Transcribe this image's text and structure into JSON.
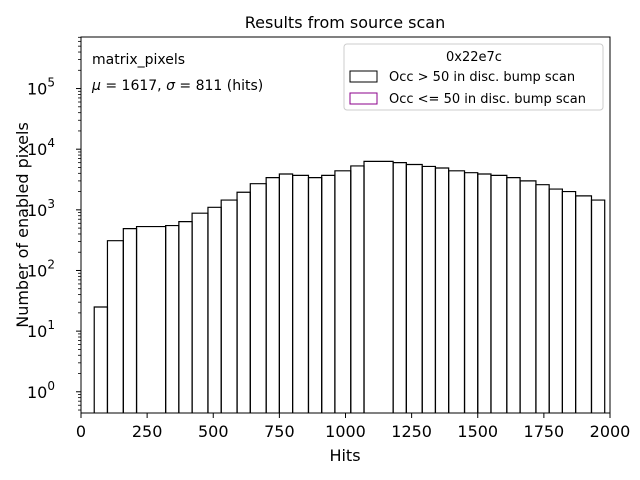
{
  "chart_data": {
    "type": "bar",
    "subtype": "step-histogram",
    "title": "Results from source scan",
    "xlabel": "Hits",
    "ylabel": "Number of enabled pixels",
    "xlim": [
      0,
      2000
    ],
    "ylim_log10": [
      -0.35,
      5.85
    ],
    "yscale": "log",
    "grid": false,
    "x_ticks": [
      "0",
      "250",
      "500",
      "750",
      "1000",
      "1250",
      "1500",
      "1750",
      "2000"
    ],
    "y_ticks": [
      {
        "base": "10",
        "exp": "0",
        "value": 1
      },
      {
        "base": "10",
        "exp": "1",
        "value": 10
      },
      {
        "base": "10",
        "exp": "2",
        "value": 100
      },
      {
        "base": "10",
        "exp": "3",
        "value": 1000
      },
      {
        "base": "10",
        "exp": "4",
        "value": 10000
      },
      {
        "base": "10",
        "exp": "5",
        "value": 100000
      }
    ],
    "annotations": {
      "name": "matrix_pixels",
      "stats_mu_sym": "μ",
      "stats_mu_val": " = 1617, ",
      "stats_sigma_sym": "σ",
      "stats_sigma_val": " = 811 (hits)"
    },
    "legend": {
      "title": "0x22e7c",
      "placement": "top-right",
      "entries": [
        {
          "label": "Occ > 50 in disc. bump scan",
          "color": "#000000"
        },
        {
          "label": "Occ <= 50 in disc. bump scan",
          "color": "#8b008b"
        }
      ]
    },
    "series": [
      {
        "name": "Occ > 50 in disc. bump scan",
        "color": "#000000",
        "bins": [
          {
            "x0": 50,
            "x1": 100,
            "y": 25
          },
          {
            "x0": 100,
            "x1": 160,
            "y": 310
          },
          {
            "x0": 160,
            "x1": 210,
            "y": 490
          },
          {
            "x0": 210,
            "x1": 320,
            "y": 530
          },
          {
            "x0": 320,
            "x1": 370,
            "y": 550
          },
          {
            "x0": 370,
            "x1": 420,
            "y": 640
          },
          {
            "x0": 420,
            "x1": 480,
            "y": 880
          },
          {
            "x0": 480,
            "x1": 530,
            "y": 1100
          },
          {
            "x0": 530,
            "x1": 590,
            "y": 1450
          },
          {
            "x0": 590,
            "x1": 640,
            "y": 1950
          },
          {
            "x0": 640,
            "x1": 700,
            "y": 2700
          },
          {
            "x0": 700,
            "x1": 750,
            "y": 3400
          },
          {
            "x0": 750,
            "x1": 800,
            "y": 3900
          },
          {
            "x0": 800,
            "x1": 860,
            "y": 3700
          },
          {
            "x0": 860,
            "x1": 910,
            "y": 3400
          },
          {
            "x0": 910,
            "x1": 960,
            "y": 3700
          },
          {
            "x0": 960,
            "x1": 1020,
            "y": 4400
          },
          {
            "x0": 1020,
            "x1": 1070,
            "y": 5300
          },
          {
            "x0": 1070,
            "x1": 1180,
            "y": 6300
          },
          {
            "x0": 1180,
            "x1": 1230,
            "y": 6000
          },
          {
            "x0": 1230,
            "x1": 1290,
            "y": 5600
          },
          {
            "x0": 1290,
            "x1": 1340,
            "y": 5200
          },
          {
            "x0": 1340,
            "x1": 1390,
            "y": 4900
          },
          {
            "x0": 1390,
            "x1": 1450,
            "y": 4400
          },
          {
            "x0": 1450,
            "x1": 1500,
            "y": 4100
          },
          {
            "x0": 1500,
            "x1": 1550,
            "y": 3900
          },
          {
            "x0": 1550,
            "x1": 1610,
            "y": 3700
          },
          {
            "x0": 1610,
            "x1": 1660,
            "y": 3400
          },
          {
            "x0": 1660,
            "x1": 1720,
            "y": 3000
          },
          {
            "x0": 1720,
            "x1": 1770,
            "y": 2600
          },
          {
            "x0": 1770,
            "x1": 1820,
            "y": 2200
          },
          {
            "x0": 1820,
            "x1": 1870,
            "y": 2000
          },
          {
            "x0": 1870,
            "x1": 1930,
            "y": 1700
          },
          {
            "x0": 1930,
            "x1": 1980,
            "y": 1450
          }
        ]
      }
    ]
  }
}
